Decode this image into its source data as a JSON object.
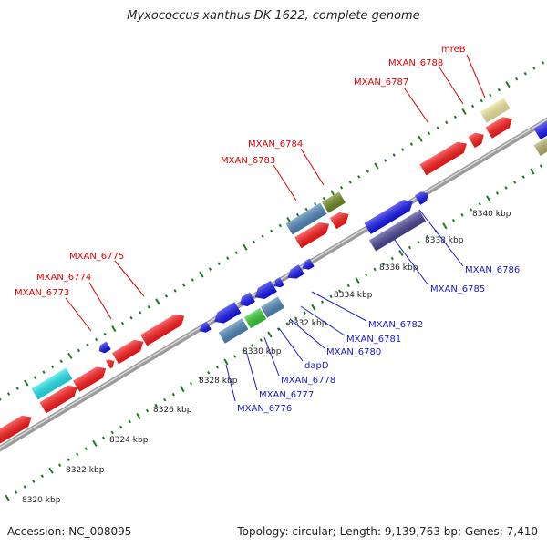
{
  "title": "Myxococcus xanthus DK 1622, complete genome",
  "footer": {
    "accession": "Accession: NC_008095",
    "summary": "Topology: circular; Length: 9,139,763 bp; Genes: 7,410"
  },
  "kbp_labels": [
    "8320 kbp",
    "8322 kbp",
    "8324 kbp",
    "8326 kbp",
    "8328 kbp",
    "8330 kbp",
    "8332 kbp",
    "8334 kbp",
    "8336 kbp",
    "8338 kbp",
    "8340 kbp"
  ],
  "forward_labels": [
    "MXAN_6773",
    "MXAN_6774",
    "MXAN_6775",
    "MXAN_6783",
    "MXAN_6784",
    "MXAN_6787",
    "MXAN_6788",
    "mreB"
  ],
  "reverse_labels": [
    "MXAN_6776",
    "MXAN_6777",
    "MXAN_6778",
    "dapD",
    "MXAN_6780",
    "MXAN_6781",
    "MXAN_6782",
    "MXAN_6785",
    "MXAN_6786"
  ],
  "colors": {
    "backbone": "#888888",
    "ticks": "#1f7a1f",
    "forward_gene": "#ff1a1a",
    "reverse_gene": "#1515ee",
    "rna_steel": "#4f86b8",
    "cyan": "#22e6ee",
    "olive": "#6f8a22",
    "green": "#33cc33",
    "pale_yellow": "#f2e7a0",
    "dark_slate": "#4a4496",
    "khaki": "#b8b070"
  }
}
